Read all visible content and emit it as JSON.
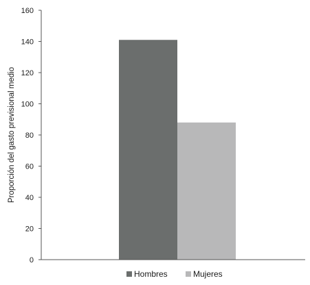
{
  "chart_data": {
    "type": "bar",
    "title": "",
    "xlabel": "",
    "ylabel": "Proporción del gasto previsional medio",
    "ylim": [
      0,
      160
    ],
    "yticks": [
      0,
      20,
      40,
      60,
      80,
      100,
      120,
      140,
      160
    ],
    "grid": false,
    "legend_position": "bottom",
    "series": [
      {
        "name": "Hombres",
        "value": 141,
        "color": "#6b6e6d"
      },
      {
        "name": "Mujeres",
        "value": 88,
        "color": "#b8b8b9"
      }
    ]
  }
}
